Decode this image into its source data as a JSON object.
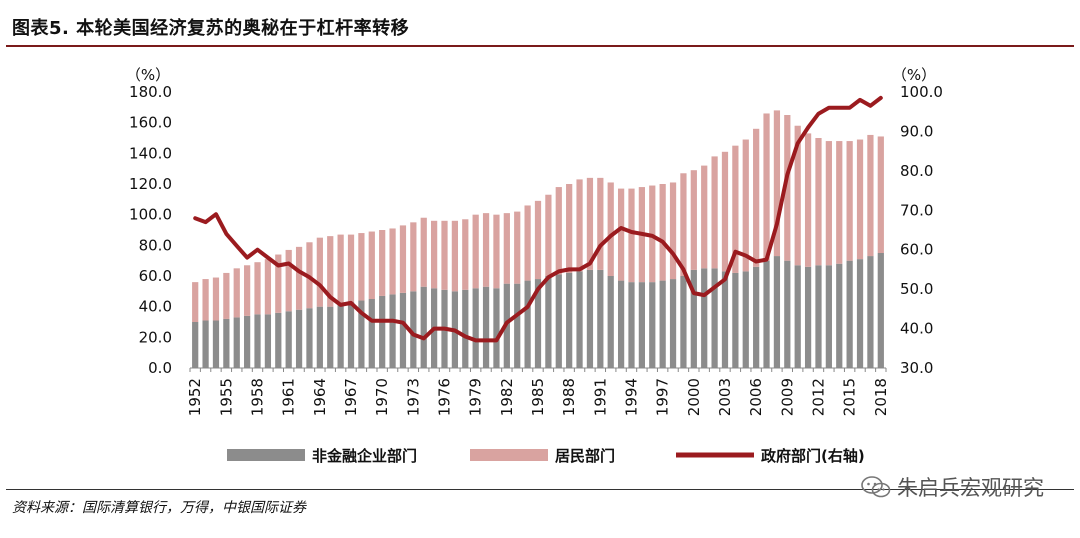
{
  "title": "图表5. 本轮美国经济复苏的奥秘在于杠杆率转移",
  "source": "资料来源：国际清算银行，万得，中银国际证券",
  "watermark": "朱启兵宏观研究",
  "watermark_icon": "wechat-icon",
  "colors": {
    "corporate": "#8c8c8c",
    "household": "#d9a3a0",
    "government": "#9b1b1f",
    "title_rule": "#7a1a1a"
  },
  "chart_data": {
    "type": "bar",
    "stacked": true,
    "y_left_unit": "（%）",
    "y_right_unit": "（%）",
    "ylim_left": [
      0,
      180
    ],
    "ylim_right": [
      30,
      100
    ],
    "y_left_ticks": [
      "0.0",
      "20.0",
      "40.0",
      "60.0",
      "80.0",
      "100.0",
      "120.0",
      "140.0",
      "160.0",
      "180.0"
    ],
    "y_right_ticks": [
      "30.0",
      "40.0",
      "50.0",
      "60.0",
      "70.0",
      "80.0",
      "90.0",
      "100.0"
    ],
    "x_tick_labels": [
      "1952",
      "1955",
      "1958",
      "1961",
      "1964",
      "1967",
      "1970",
      "1973",
      "1976",
      "1979",
      "1982",
      "1985",
      "1988",
      "1991",
      "1994",
      "1997",
      "2000",
      "2003",
      "2006",
      "2009",
      "2012",
      "2015",
      "2018"
    ],
    "x": [
      1952,
      1953,
      1954,
      1955,
      1956,
      1957,
      1958,
      1959,
      1960,
      1961,
      1962,
      1963,
      1964,
      1965,
      1966,
      1967,
      1968,
      1969,
      1970,
      1971,
      1972,
      1973,
      1974,
      1975,
      1976,
      1977,
      1978,
      1979,
      1980,
      1981,
      1982,
      1983,
      1984,
      1985,
      1986,
      1987,
      1988,
      1989,
      1990,
      1991,
      1992,
      1993,
      1994,
      1995,
      1996,
      1997,
      1998,
      1999,
      2000,
      2001,
      2002,
      2003,
      2004,
      2005,
      2006,
      2007,
      2008,
      2009,
      2010,
      2011,
      2012,
      2013,
      2014,
      2015,
      2016,
      2017,
      2018
    ],
    "series": [
      {
        "name": "非金融企业部门",
        "type": "bar",
        "axis": "left",
        "values": [
          30,
          31,
          31,
          32,
          33,
          34,
          35,
          35,
          36,
          37,
          38,
          39,
          40,
          40,
          42,
          43,
          44,
          45,
          47,
          48,
          49,
          50,
          53,
          52,
          51,
          50,
          51,
          52,
          53,
          52,
          55,
          55,
          57,
          58,
          60,
          61,
          62,
          63,
          64,
          64,
          60,
          57,
          56,
          56,
          56,
          57,
          58,
          60,
          64,
          65,
          65,
          63,
          62,
          63,
          66,
          70,
          73,
          70,
          67,
          66,
          67,
          67,
          68,
          70,
          71,
          73,
          75
        ]
      },
      {
        "name": "居民部门",
        "type": "bar",
        "axis": "left",
        "values": [
          26,
          27,
          28,
          30,
          32,
          33,
          34,
          36,
          38,
          40,
          41,
          43,
          45,
          46,
          45,
          44,
          44,
          44,
          43,
          43,
          44,
          45,
          45,
          44,
          45,
          46,
          46,
          48,
          48,
          48,
          46,
          47,
          49,
          51,
          53,
          57,
          58,
          60,
          60,
          60,
          61,
          60,
          61,
          62,
          63,
          63,
          63,
          67,
          65,
          67,
          73,
          78,
          83,
          86,
          90,
          96,
          95,
          95,
          91,
          87,
          83,
          81,
          80,
          78,
          78,
          79,
          76
        ]
      },
      {
        "name": "政府部门(右轴)",
        "type": "line",
        "axis": "right",
        "values": [
          68,
          67,
          69,
          64,
          61,
          58,
          60,
          58,
          56,
          56.5,
          54.5,
          53,
          51,
          48,
          46,
          46.5,
          44,
          42,
          42,
          42,
          41.5,
          38.5,
          37.5,
          40,
          40,
          39.5,
          38,
          37,
          37,
          37,
          41.5,
          43.5,
          45.5,
          50,
          53,
          54.5,
          55,
          55,
          56.5,
          61,
          63.5,
          65.5,
          64.5,
          64,
          63.5,
          62,
          59,
          55,
          49,
          48.5,
          50.5,
          52.5,
          59.5,
          58.5,
          57,
          57.5,
          66.5,
          79,
          87,
          91,
          94.5,
          96,
          96,
          96,
          98,
          96.5,
          98.5
        ]
      }
    ]
  }
}
